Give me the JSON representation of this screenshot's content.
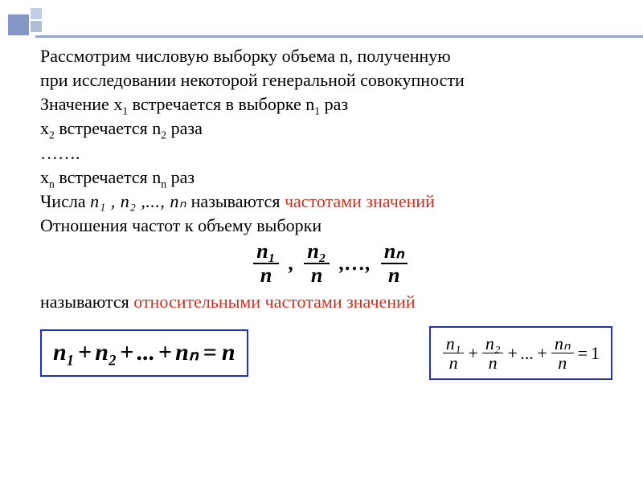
{
  "palette": {
    "accent": "#d03020",
    "rule": "#97a7cd",
    "box_border": "#2030c0",
    "text": "#000000",
    "bg": "#ffffff"
  },
  "deco": {
    "squares": [
      "#8497c6",
      "#c3cde4",
      "#b0bdd9"
    ]
  },
  "lines": {
    "p1a": "Рассмотрим числовую выборку объема n, полученную",
    "p1b": "при исследовании некоторой генеральной совокупности",
    "p2_pre": "Значение x",
    "p2_sub": "1",
    "p2_mid": " встречается в выборке n",
    "p2_sub2": "1",
    "p2_post": " раз",
    "p3_pre": "x",
    "p3_sub": "2",
    "p3_mid": " встречается n",
    "p3_sub2": "2",
    "p3_post": " раза",
    "p4": "…….",
    "p5_pre": "x",
    "p5_sub": "n",
    "p5_mid": " встречается n",
    "p5_sub2": "n",
    "p5_post": " раз",
    "p6_pre": "Числа  ",
    "p6_seq": "n₁ , n₂ ,..., nₙ",
    "p6_mid": "  называются ",
    "p6_red": "частотами значений",
    "p7": "Отношения частот к объему выборки",
    "p8_pre": "называются ",
    "p8_red": "относительными частотами значений"
  },
  "fractions_center": {
    "items": [
      {
        "num": "n₁",
        "den": "n"
      },
      {
        "num": "n₂",
        "den": "n"
      },
      {
        "num": "nₙ",
        "den": "n"
      }
    ],
    "sep1": ",",
    "sep2": ",…,"
  },
  "box_left": {
    "terms": [
      "n₁",
      "n₂",
      "...",
      "nₙ"
    ],
    "op": "+",
    "eq": "=",
    "rhs": "n"
  },
  "box_right": {
    "fracs": [
      {
        "num": "n₁",
        "den": "n"
      },
      {
        "num": "n₂",
        "den": "n"
      },
      {
        "num": "nₙ",
        "den": "n"
      }
    ],
    "op": "+",
    "dots": "...",
    "eq": "=",
    "rhs": "1"
  }
}
